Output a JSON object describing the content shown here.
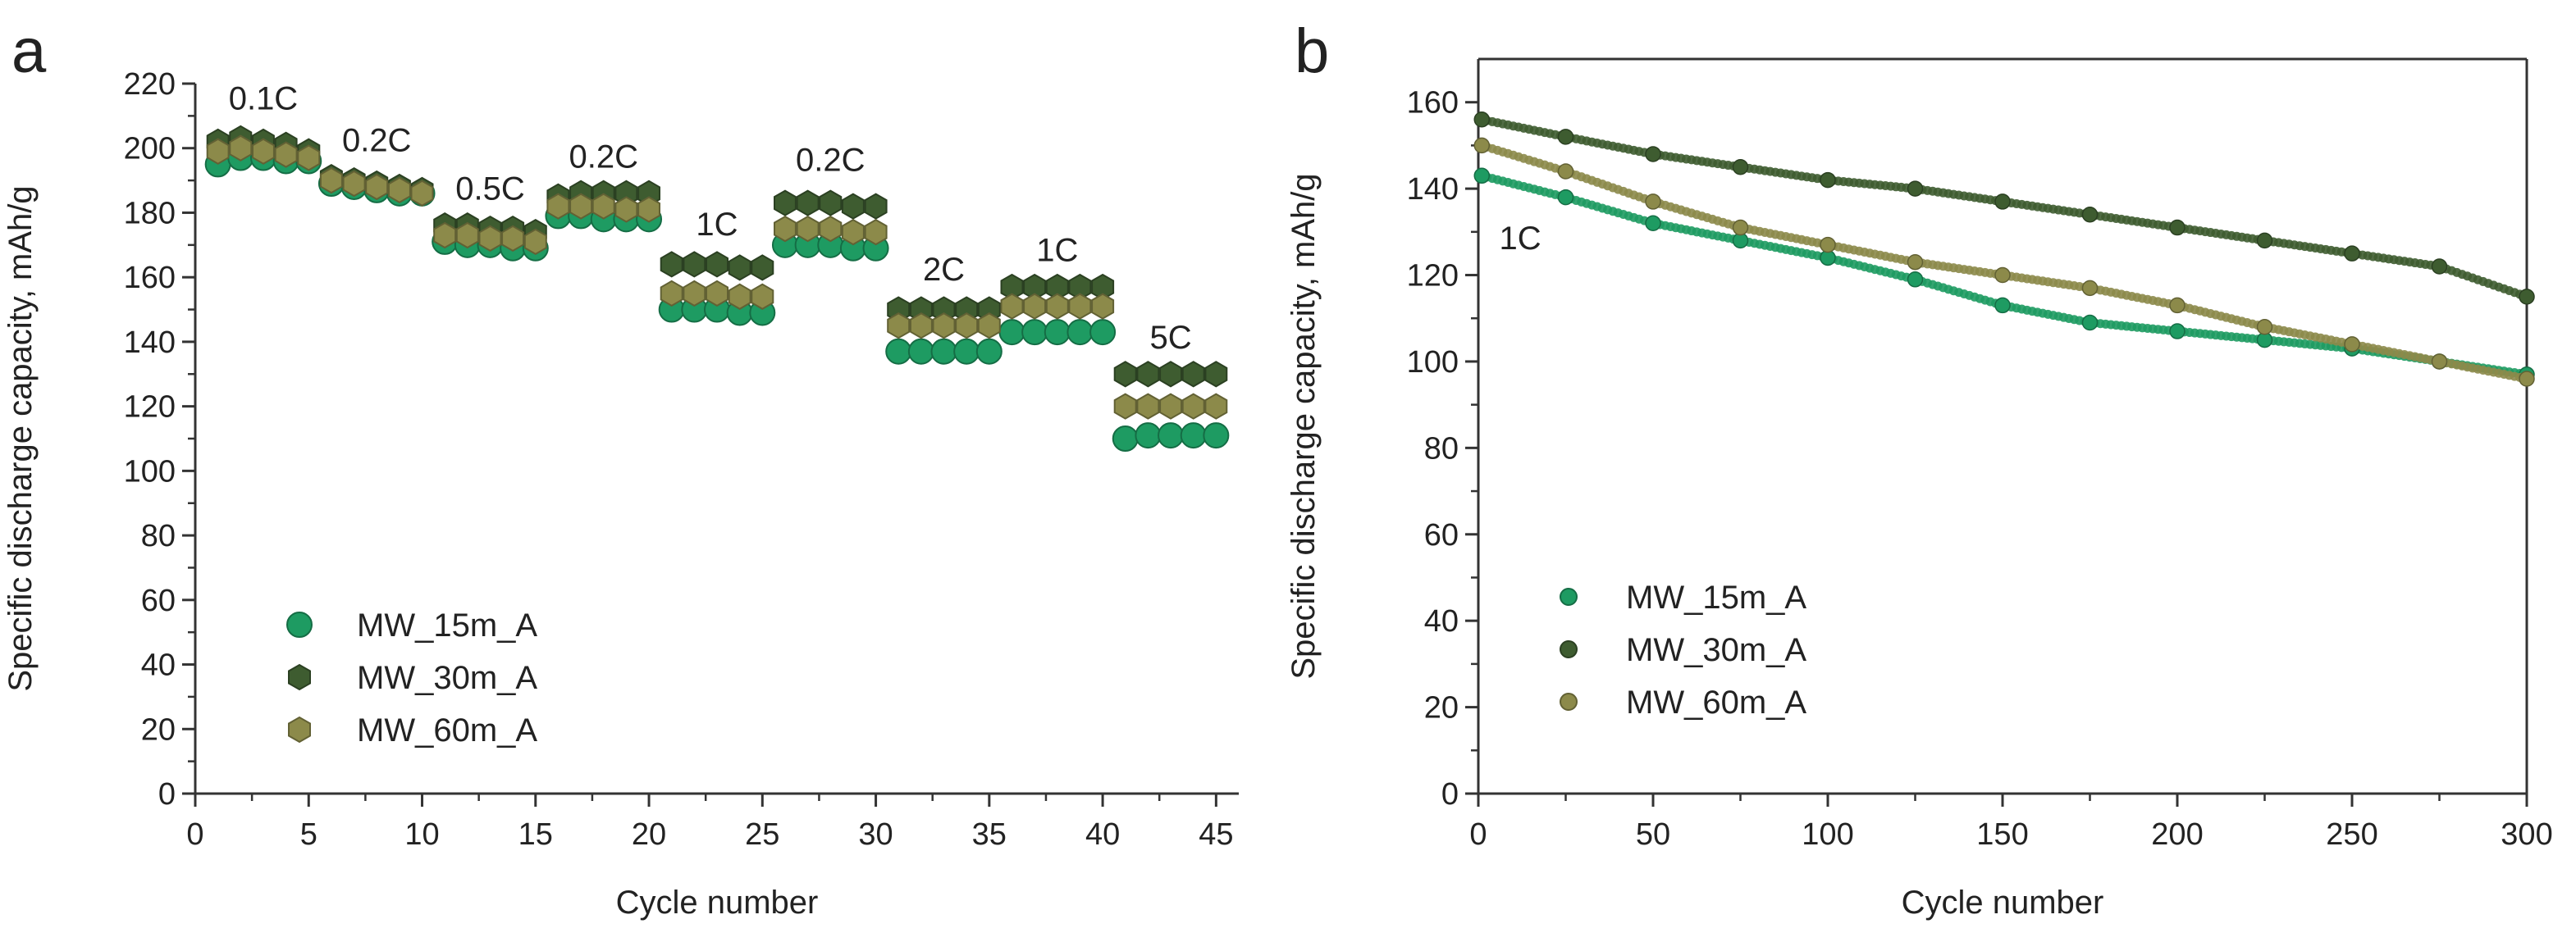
{
  "chart_data": [
    {
      "type": "scatter",
      "panel_label": "a",
      "xlabel": "Cycle number",
      "ylabel": "Specific discharge capacity, mAh/g",
      "xlim": [
        0,
        46
      ],
      "ylim": [
        0,
        220
      ],
      "xticks": [
        0,
        5,
        10,
        15,
        20,
        25,
        30,
        35,
        40,
        45
      ],
      "yticks": [
        0,
        20,
        40,
        60,
        80,
        100,
        120,
        140,
        160,
        180,
        200,
        220
      ],
      "grid": false,
      "legend_position": "bottom-left",
      "annotations": [
        {
          "text": "0.1C",
          "x": 3,
          "y": 212
        },
        {
          "text": "0.2C",
          "x": 8,
          "y": 199
        },
        {
          "text": "0.5C",
          "x": 13,
          "y": 184
        },
        {
          "text": "0.2C",
          "x": 18,
          "y": 194
        },
        {
          "text": "1C",
          "x": 23,
          "y": 173
        },
        {
          "text": "0.2C",
          "x": 28,
          "y": 193
        },
        {
          "text": "2C",
          "x": 33,
          "y": 159
        },
        {
          "text": "1C",
          "x": 38,
          "y": 165
        },
        {
          "text": "5C",
          "x": 43,
          "y": 138
        }
      ],
      "series": [
        {
          "name": "MW_15m_A",
          "color": "#1e9b62",
          "marker": "circle",
          "x": [
            1,
            2,
            3,
            4,
            5,
            6,
            7,
            8,
            9,
            10,
            11,
            12,
            13,
            14,
            15,
            16,
            17,
            18,
            19,
            20,
            21,
            22,
            23,
            24,
            25,
            26,
            27,
            28,
            29,
            30,
            31,
            32,
            33,
            34,
            35,
            36,
            37,
            38,
            39,
            40,
            41,
            42,
            43,
            44,
            45
          ],
          "y": [
            195,
            197,
            197,
            196,
            196,
            189,
            188,
            187,
            186,
            186,
            171,
            170,
            170,
            169,
            169,
            179,
            179,
            178,
            178,
            178,
            150,
            150,
            150,
            149,
            149,
            170,
            170,
            170,
            169,
            169,
            137,
            137,
            137,
            137,
            137,
            143,
            143,
            143,
            143,
            143,
            110,
            111,
            111,
            111,
            111
          ]
        },
        {
          "name": "MW_30m_A",
          "color": "#3e5c30",
          "marker": "hexagon",
          "x": [
            1,
            2,
            3,
            4,
            5,
            6,
            7,
            8,
            9,
            10,
            11,
            12,
            13,
            14,
            15,
            16,
            17,
            18,
            19,
            20,
            21,
            22,
            23,
            24,
            25,
            26,
            27,
            28,
            29,
            30,
            31,
            32,
            33,
            34,
            35,
            36,
            37,
            38,
            39,
            40,
            41,
            42,
            43,
            44,
            45
          ],
          "y": [
            202,
            203,
            202,
            201,
            199,
            191,
            190,
            189,
            188,
            187,
            176,
            176,
            175,
            175,
            174,
            185,
            186,
            186,
            186,
            186,
            164,
            164,
            164,
            163,
            163,
            183,
            183,
            183,
            182,
            182,
            150,
            150,
            150,
            150,
            150,
            157,
            157,
            157,
            157,
            157,
            130,
            130,
            130,
            130,
            130
          ]
        },
        {
          "name": "MW_60m_A",
          "color": "#8c8a4a",
          "marker": "hexagon",
          "x": [
            1,
            2,
            3,
            4,
            5,
            6,
            7,
            8,
            9,
            10,
            11,
            12,
            13,
            14,
            15,
            16,
            17,
            18,
            19,
            20,
            21,
            22,
            23,
            24,
            25,
            26,
            27,
            28,
            29,
            30,
            31,
            32,
            33,
            34,
            35,
            36,
            37,
            38,
            39,
            40,
            41,
            42,
            43,
            44,
            45
          ],
          "y": [
            199,
            200,
            199,
            198,
            197,
            190,
            189,
            188,
            187,
            186,
            173,
            173,
            172,
            172,
            171,
            182,
            182,
            182,
            181,
            181,
            155,
            155,
            155,
            154,
            154,
            175,
            175,
            175,
            174,
            174,
            145,
            145,
            145,
            145,
            145,
            151,
            151,
            151,
            151,
            151,
            120,
            120,
            120,
            120,
            120
          ]
        }
      ]
    },
    {
      "type": "scatter",
      "panel_label": "b",
      "xlabel": "Cycle number",
      "ylabel": "Specific discharge capacity, mAh/g",
      "xlim": [
        0,
        300
      ],
      "ylim": [
        0,
        170
      ],
      "xticks": [
        0,
        50,
        100,
        150,
        200,
        250,
        300
      ],
      "yticks": [
        0,
        20,
        40,
        60,
        80,
        100,
        120,
        140,
        160
      ],
      "grid": false,
      "legend_position": "bottom-left",
      "annotations": [
        {
          "text": "1C",
          "x": 12,
          "y": 126
        }
      ],
      "series": [
        {
          "name": "MW_15m_A",
          "color": "#1e9b62",
          "marker": "circle",
          "x": [
            1,
            25,
            50,
            75,
            100,
            125,
            150,
            175,
            200,
            225,
            250,
            275,
            300
          ],
          "y": [
            143,
            138,
            132,
            128,
            124,
            119,
            113,
            109,
            107,
            105,
            103,
            100,
            97
          ]
        },
        {
          "name": "MW_30m_A",
          "color": "#3e5c30",
          "marker": "circle",
          "x": [
            1,
            25,
            50,
            75,
            100,
            125,
            150,
            175,
            200,
            225,
            250,
            275,
            300
          ],
          "y": [
            156,
            152,
            148,
            145,
            142,
            140,
            137,
            134,
            131,
            128,
            125,
            122,
            115
          ]
        },
        {
          "name": "MW_60m_A",
          "color": "#8c8a4a",
          "marker": "circle",
          "x": [
            1,
            25,
            50,
            75,
            100,
            125,
            150,
            175,
            200,
            225,
            250,
            275,
            300
          ],
          "y": [
            150,
            144,
            137,
            131,
            127,
            123,
            120,
            117,
            113,
            108,
            104,
            100,
            96
          ]
        }
      ]
    }
  ]
}
